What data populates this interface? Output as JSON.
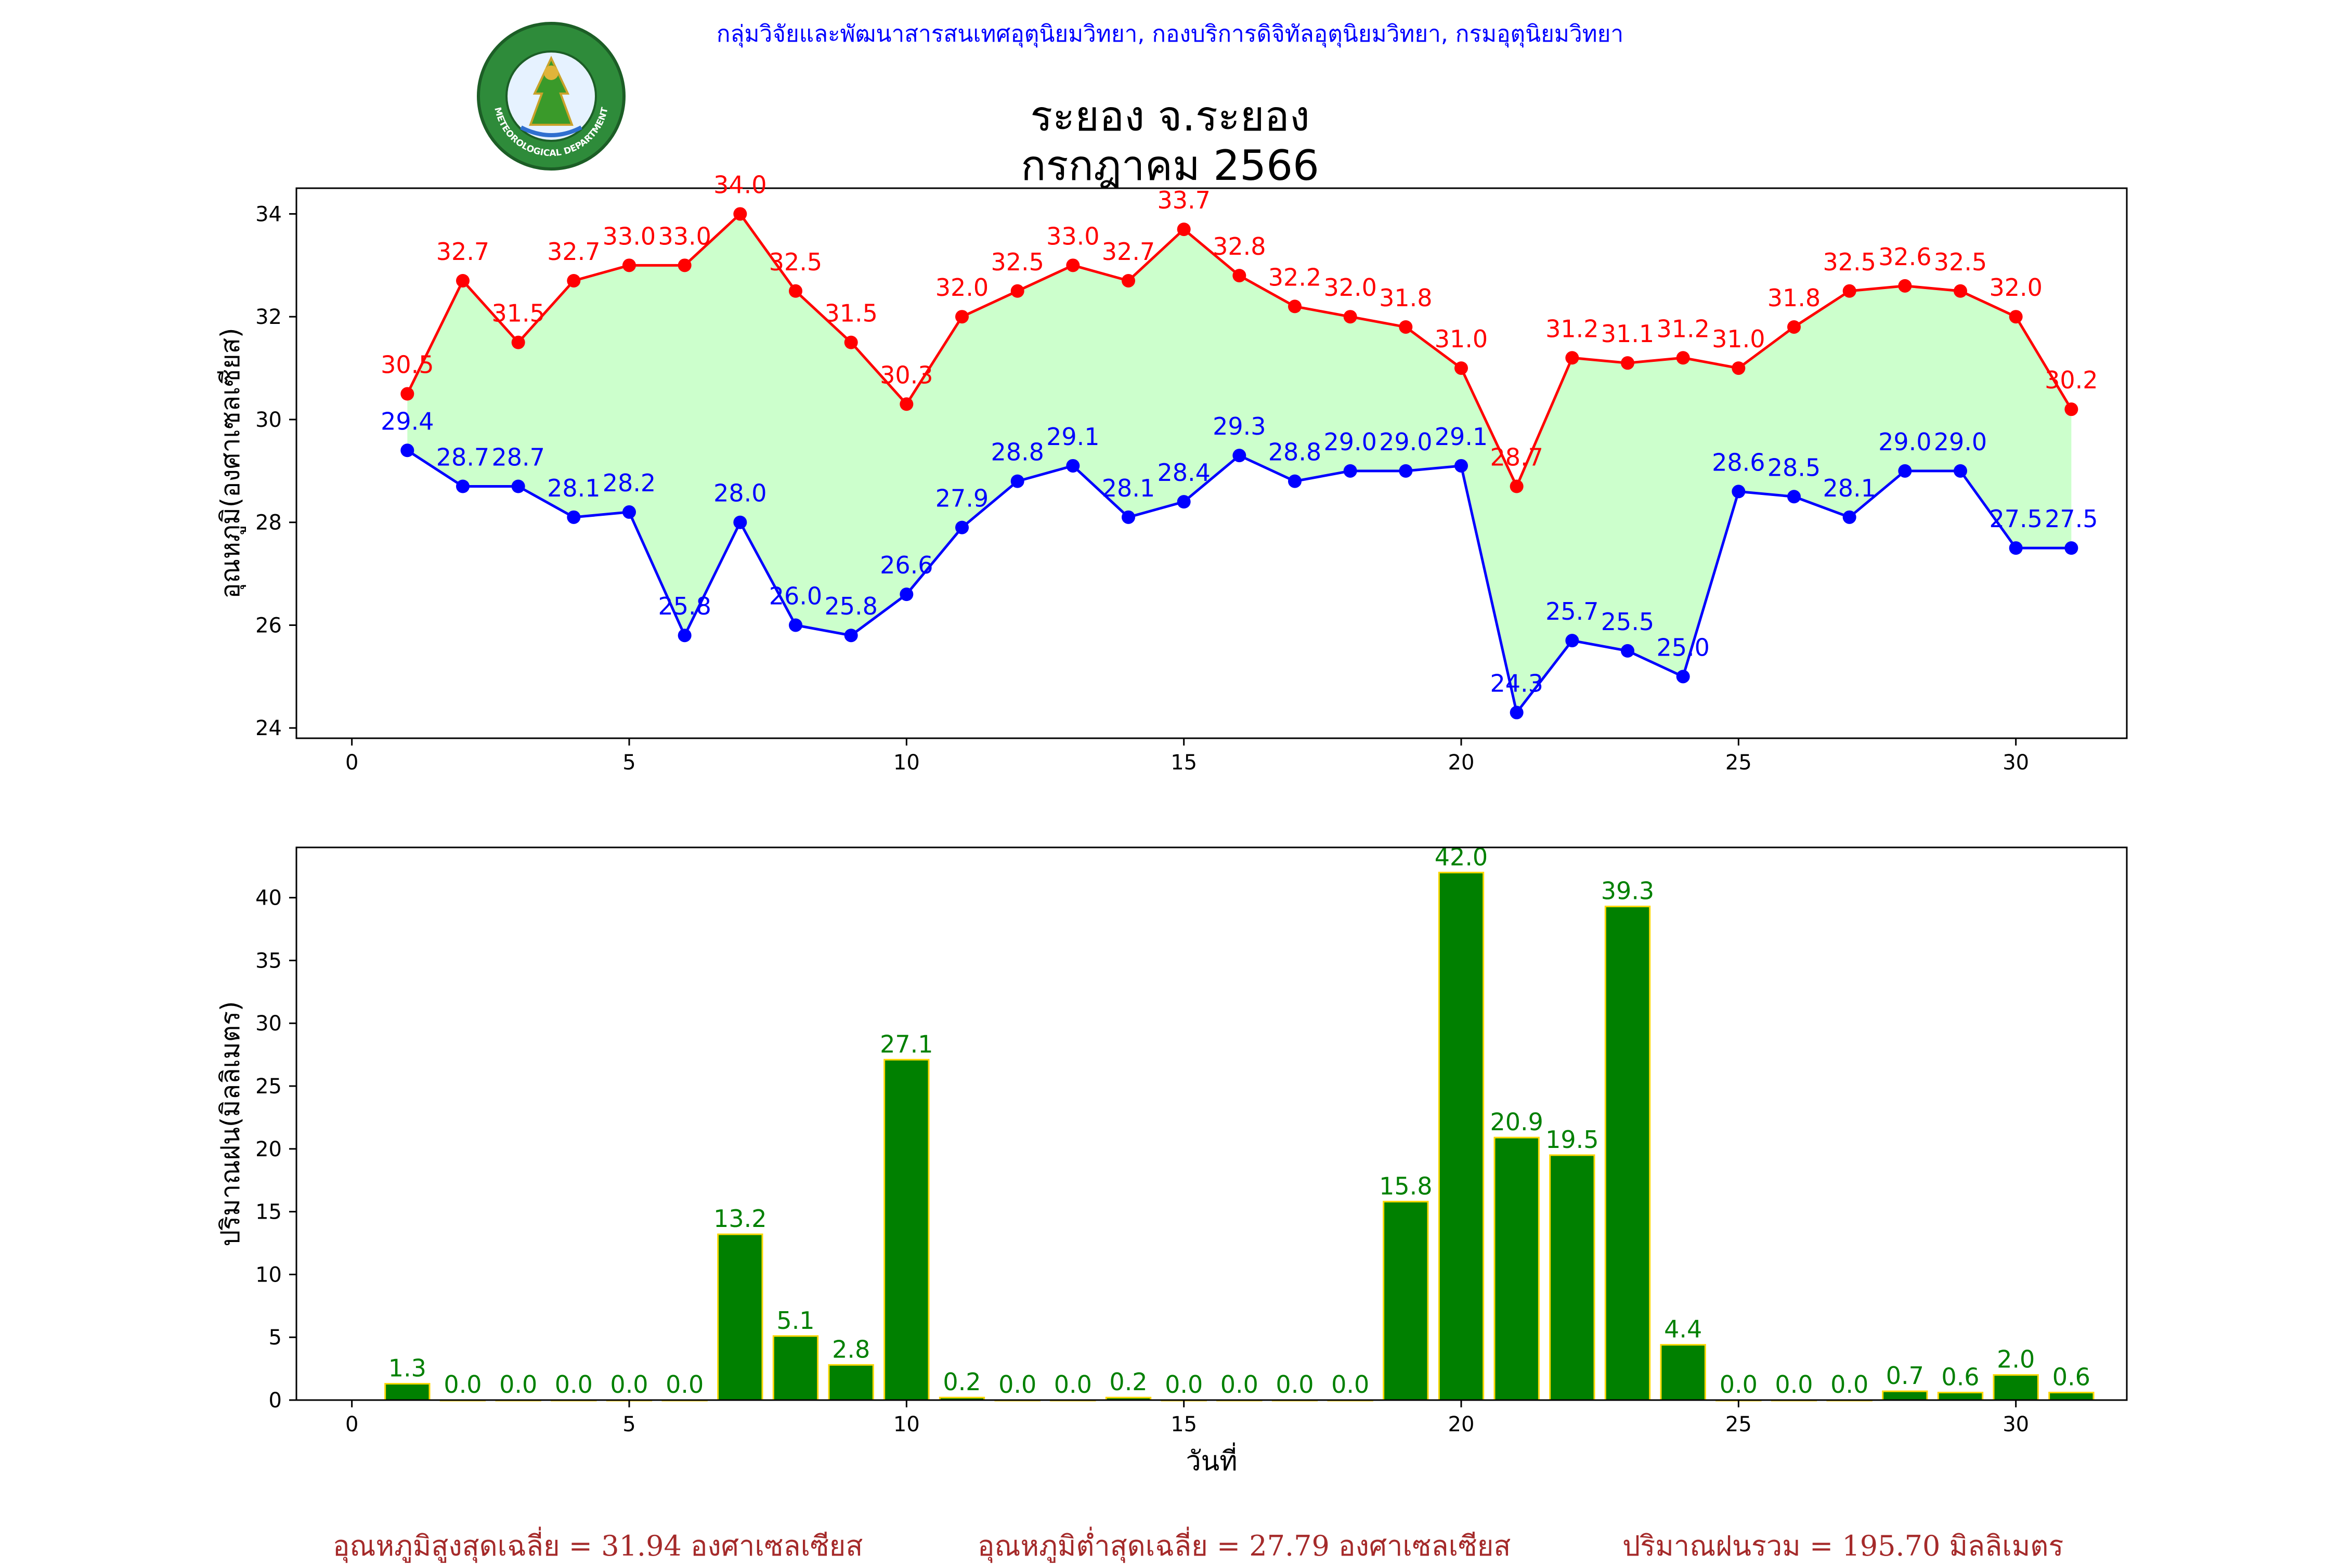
{
  "header": {
    "agency": "กลุ่มวิจัยและพัฒนาสารสนเทศอุตุนิยมวิทยา, กองบริการดิจิทัลอุตุนิยมวิทยา, กรมอุตุนิยมวิทยา",
    "title_line1": "ระยอง จ.ระยอง",
    "title_line2": "กรกฎาคม 2566",
    "logo_text_top": "กรมอุตุนิยมวิทยา",
    "logo_text_bottom": "METEOROLOGICAL DEPARTMENT"
  },
  "colors": {
    "max_line": "#ff0000",
    "min_line": "#0000ff",
    "fill": "#ccffcc",
    "bar": "#008000",
    "bar_edge": "#ffd700",
    "footer": "#a52a2a"
  },
  "chart_data": [
    {
      "type": "line",
      "ylabel": "อุณหภูมิ(องศาเซลเซียส)",
      "xlim": [
        -1,
        32
      ],
      "ylim": [
        23.8,
        34.5
      ],
      "xticks": [
        0,
        5,
        10,
        15,
        20,
        25,
        30
      ],
      "yticks": [
        24,
        26,
        28,
        30,
        32,
        34
      ],
      "x": [
        1,
        2,
        3,
        4,
        5,
        6,
        7,
        8,
        9,
        10,
        11,
        12,
        13,
        14,
        15,
        16,
        17,
        18,
        19,
        20,
        21,
        22,
        23,
        24,
        25,
        26,
        27,
        28,
        29,
        30,
        31
      ],
      "series": [
        {
          "key": "max",
          "values": [
            30.5,
            32.7,
            31.5,
            32.7,
            33.0,
            33.0,
            34.0,
            32.5,
            31.5,
            30.3,
            32.0,
            32.5,
            33.0,
            32.7,
            33.7,
            32.8,
            32.2,
            32.0,
            31.8,
            31.0,
            28.7,
            31.2,
            31.1,
            31.2,
            31.0,
            31.8,
            32.5,
            32.6,
            32.5,
            32.0,
            30.2
          ]
        },
        {
          "key": "min",
          "values": [
            29.4,
            28.7,
            28.7,
            28.1,
            28.2,
            25.8,
            28.0,
            26.0,
            25.8,
            26.6,
            27.9,
            28.8,
            29.1,
            28.1,
            28.4,
            29.3,
            28.8,
            29.0,
            29.0,
            29.1,
            24.3,
            25.7,
            25.5,
            25.0,
            28.6,
            28.5,
            28.1,
            29.0,
            29.0,
            27.5,
            27.5
          ]
        }
      ]
    },
    {
      "type": "bar",
      "ylabel": "ปริมาณฝน(มิลลิเมตร)",
      "xlabel": "วันที่",
      "xlim": [
        -1,
        32
      ],
      "ylim": [
        0,
        44
      ],
      "xticks": [
        0,
        5,
        10,
        15,
        20,
        25,
        30
      ],
      "yticks": [
        0,
        5,
        10,
        15,
        20,
        25,
        30,
        35,
        40
      ],
      "x": [
        1,
        2,
        3,
        4,
        5,
        6,
        7,
        8,
        9,
        10,
        11,
        12,
        13,
        14,
        15,
        16,
        17,
        18,
        19,
        20,
        21,
        22,
        23,
        24,
        25,
        26,
        27,
        28,
        29,
        30,
        31
      ],
      "values": [
        1.3,
        0.0,
        0.0,
        0.0,
        0.0,
        0.0,
        13.2,
        5.1,
        2.8,
        27.1,
        0.2,
        0.0,
        0.0,
        0.2,
        0.0,
        0.0,
        0.0,
        0.0,
        15.8,
        42.0,
        20.9,
        19.5,
        39.3,
        4.4,
        0.0,
        0.0,
        0.0,
        0.7,
        0.6,
        2.0,
        0.6
      ]
    }
  ],
  "footer": {
    "max_avg": "อุณหภูมิสูงสุดเฉลี่ย = 31.94 องศาเซลเซียส",
    "min_avg": "อุณหภูมิต่ำสุดเฉลี่ย = 27.79 องศาเซลเซียส",
    "rain_total": "ปริมาณฝนรวม = 195.70 มิลลิเมตร"
  }
}
